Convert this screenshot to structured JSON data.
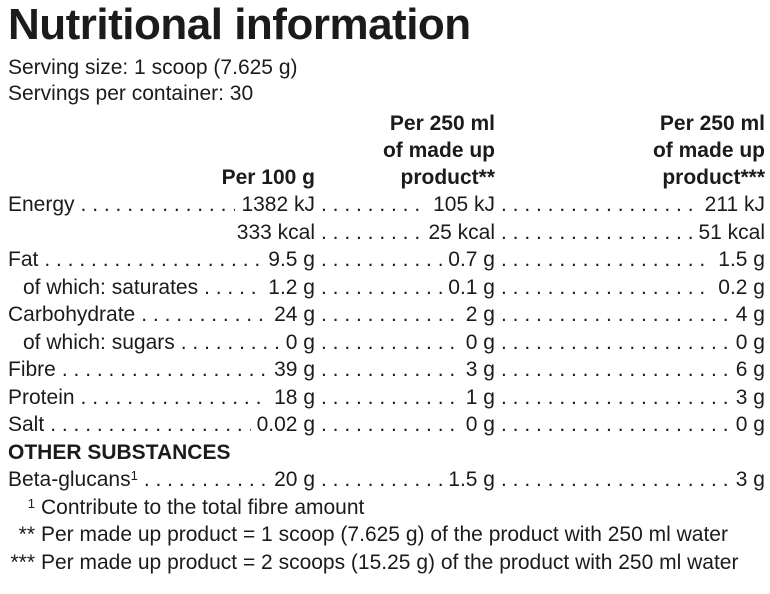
{
  "colors": {
    "text": "#1b1b1d",
    "background": "#ffffff"
  },
  "header": {
    "title": "Nutritional information",
    "serving_size": "Serving size: 1 scoop (7.625 g)",
    "servings_per_container": "Servings per container: 30"
  },
  "table": {
    "columns": [
      {
        "lines": [
          "Per 100 g"
        ]
      },
      {
        "lines": [
          "Per 250 ml",
          "of made up",
          "product**"
        ]
      },
      {
        "lines": [
          "Per 250 ml",
          "of made up",
          "product***"
        ]
      }
    ],
    "rows": [
      {
        "label": "Energy",
        "v1": "1382 kJ",
        "v2": "105 kJ",
        "v3": "211 kJ"
      },
      {
        "label": "",
        "v1": "333 kcal",
        "v2": "25 kcal",
        "v3": "51 kcal"
      },
      {
        "label": "Fat",
        "v1": "9.5 g",
        "v2": "0.7 g",
        "v3": "1.5 g"
      },
      {
        "label": "of which: saturates",
        "v1": "1.2 g",
        "v2": "0.1 g",
        "v3": "0.2 g"
      },
      {
        "label": "Carbohydrate",
        "v1": "24 g",
        "v2": "2 g",
        "v3": "4 g"
      },
      {
        "label": "of which: sugars",
        "v1": "0 g",
        "v2": "0 g",
        "v3": "0 g"
      },
      {
        "label": "Fibre",
        "v1": "39 g",
        "v2": "3 g",
        "v3": "6 g"
      },
      {
        "label": "Protein",
        "v1": "18 g",
        "v2": "1 g",
        "v3": "3 g"
      },
      {
        "label": "Salt",
        "v1": "0.02 g",
        "v2": "0 g",
        "v3": "0 g"
      }
    ],
    "section_heading": "OTHER SUBSTANCES",
    "other_rows": [
      {
        "label": "Beta-glucans",
        "label_sup": "1",
        "v1": "20 g",
        "v2": "1.5 g",
        "v3": "3 g"
      }
    ]
  },
  "footnotes": [
    {
      "marker": "1",
      "text": "Contribute to the total fibre amount"
    },
    {
      "marker": "**",
      "text": "Per made up product = 1 scoop (7.625 g) of the product with 250 ml water"
    },
    {
      "marker": "***",
      "text": "Per made up product = 2 scoops (15.25 g) of the product with 250 ml water"
    }
  ]
}
